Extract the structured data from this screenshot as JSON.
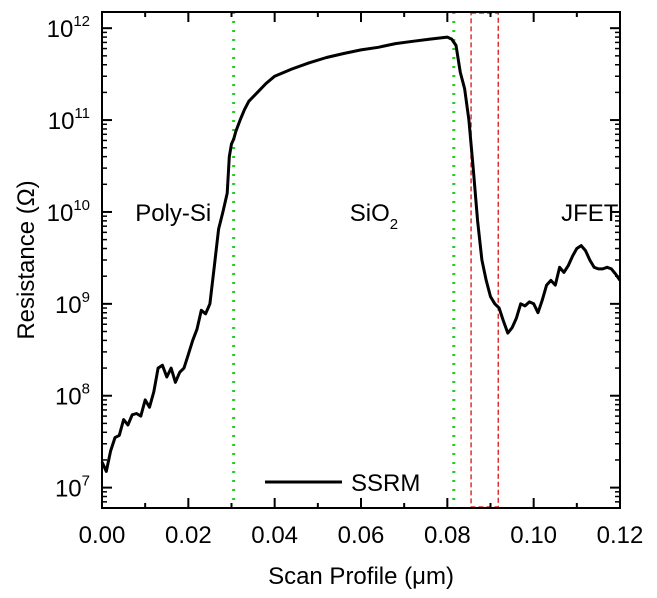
{
  "chart_data": {
    "type": "line",
    "xlabel": "Scan Profile (μm)",
    "ylabel": "Resistance (Ω)",
    "xlim": [
      0.0,
      0.12
    ],
    "ylim": [
      6000000,
      1500000000000
    ],
    "y_scale": "log",
    "grid": false,
    "x_ticks": [
      0.0,
      0.02,
      0.04,
      0.06,
      0.08,
      0.1,
      0.12
    ],
    "x_tick_labels": [
      "0.00",
      "0.02",
      "0.04",
      "0.06",
      "0.08",
      "0.10",
      "0.12"
    ],
    "y_ticks": [
      {
        "base": "10",
        "exp": "7",
        "value": 10000000
      },
      {
        "base": "10",
        "exp": "8",
        "value": 100000000
      },
      {
        "base": "10",
        "exp": "9",
        "value": 1000000000
      },
      {
        "base": "10",
        "exp": "10",
        "value": 10000000000
      },
      {
        "base": "10",
        "exp": "11",
        "value": 100000000000
      },
      {
        "base": "10",
        "exp": "12",
        "value": 1000000000000
      }
    ],
    "series": [
      {
        "name": "SSRM",
        "color": "#000000",
        "x": [
          0.0,
          0.001,
          0.002,
          0.003,
          0.004,
          0.005,
          0.006,
          0.007,
          0.008,
          0.009,
          0.01,
          0.011,
          0.012,
          0.013,
          0.014,
          0.015,
          0.016,
          0.017,
          0.018,
          0.019,
          0.02,
          0.021,
          0.022,
          0.023,
          0.024,
          0.025,
          0.026,
          0.027,
          0.028,
          0.029,
          0.0295,
          0.03,
          0.0305,
          0.031,
          0.032,
          0.033,
          0.034,
          0.036,
          0.038,
          0.04,
          0.044,
          0.048,
          0.052,
          0.056,
          0.06,
          0.064,
          0.068,
          0.072,
          0.076,
          0.08,
          0.081,
          0.082,
          0.083,
          0.084,
          0.085,
          0.086,
          0.087,
          0.088,
          0.089,
          0.09,
          0.091,
          0.092,
          0.093,
          0.094,
          0.095,
          0.096,
          0.097,
          0.098,
          0.099,
          0.1,
          0.101,
          0.102,
          0.103,
          0.104,
          0.105,
          0.106,
          0.107,
          0.108,
          0.109,
          0.11,
          0.111,
          0.112,
          0.113,
          0.114,
          0.115,
          0.116,
          0.117,
          0.118,
          0.119,
          0.12
        ],
        "y": [
          19000000,
          15000000,
          25000000,
          35000000,
          37000000,
          55000000,
          48000000,
          62000000,
          64000000,
          60000000,
          90000000,
          75000000,
          110000000,
          200000000,
          215000000,
          160000000,
          200000000,
          140000000,
          180000000,
          200000000,
          280000000,
          400000000,
          530000000,
          850000000,
          780000000,
          1000000000,
          2500000000,
          6500000000,
          10000000000,
          16000000000,
          40000000000,
          55000000000,
          62000000000,
          75000000000,
          100000000000,
          130000000000,
          160000000000,
          200000000000,
          250000000000,
          300000000000,
          360000000000,
          420000000000,
          480000000000,
          530000000000,
          580000000000,
          620000000000,
          680000000000,
          720000000000,
          760000000000,
          800000000000,
          760000000000,
          650000000000,
          330000000000,
          220000000000,
          100000000000,
          30000000000,
          8000000000,
          3000000000,
          1800000000,
          1200000000,
          1000000000,
          900000000,
          650000000,
          480000000,
          550000000,
          700000000,
          1000000000,
          950000000,
          1050000000,
          1000000000,
          800000000,
          1100000000,
          1600000000,
          1800000000,
          1600000000,
          2500000000,
          2200000000,
          2600000000,
          3300000000,
          4000000000,
          4300000000,
          3800000000,
          3000000000,
          2500000000,
          2400000000,
          2400000000,
          2500000000,
          2400000000,
          2100000000,
          1800000000
        ]
      }
    ],
    "vertical_lines": [
      {
        "x": 0.0305,
        "style": "dotted",
        "color": "#22cc22"
      },
      {
        "x": 0.0815,
        "style": "dotted",
        "color": "#22cc22"
      }
    ],
    "highlight_box": {
      "x_start": 0.0855,
      "x_end": 0.0918,
      "style": "dashed",
      "color": "#e03030"
    },
    "annotations": [
      {
        "text": "Poly-Si",
        "x": 0.0165,
        "y": 10000000000
      },
      {
        "text": "SiO",
        "subscript": "2",
        "x": 0.063,
        "y": 10000000000
      },
      {
        "text": "JFET",
        "x": 0.113,
        "y": 10000000000
      }
    ],
    "legend": {
      "position": "bottom-center",
      "label": "SSRM"
    }
  }
}
